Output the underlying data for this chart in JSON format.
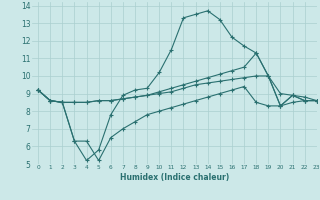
{
  "xlabel": "Humidex (Indice chaleur)",
  "background_color": "#cce8e8",
  "grid_color": "#aacfcf",
  "line_color": "#2a7070",
  "xlim": [
    -0.5,
    23
  ],
  "ylim": [
    5,
    14.2
  ],
  "xticks": [
    0,
    1,
    2,
    3,
    4,
    5,
    6,
    7,
    8,
    9,
    10,
    11,
    12,
    13,
    14,
    15,
    16,
    17,
    18,
    19,
    20,
    21,
    22,
    23
  ],
  "yticks": [
    5,
    6,
    7,
    8,
    9,
    10,
    11,
    12,
    13,
    14
  ],
  "s1": [
    9.2,
    8.6,
    8.5,
    6.3,
    5.2,
    5.8,
    7.8,
    8.9,
    9.2,
    9.3,
    10.2,
    11.5,
    13.3,
    13.5,
    13.7,
    13.2,
    12.2,
    11.7,
    11.3,
    10.0,
    8.3,
    8.9,
    8.6,
    8.6
  ],
  "s2": [
    9.2,
    8.6,
    8.5,
    8.5,
    8.5,
    8.6,
    8.6,
    8.7,
    8.8,
    8.9,
    9.1,
    9.3,
    9.5,
    9.7,
    9.9,
    10.1,
    10.3,
    10.5,
    11.3,
    10.0,
    8.3,
    8.9,
    8.6,
    8.6
  ],
  "s3": [
    9.2,
    8.6,
    8.5,
    8.5,
    8.5,
    8.6,
    8.6,
    8.7,
    8.8,
    8.9,
    9.0,
    9.1,
    9.3,
    9.5,
    9.6,
    9.7,
    9.8,
    9.9,
    10.0,
    10.0,
    9.0,
    8.9,
    8.8,
    8.6
  ],
  "s4": [
    9.2,
    8.6,
    8.5,
    6.3,
    6.3,
    5.2,
    6.5,
    7.0,
    7.4,
    7.8,
    8.0,
    8.2,
    8.4,
    8.6,
    8.8,
    9.0,
    9.2,
    9.4,
    8.5,
    8.3,
    8.3,
    8.5,
    8.6,
    8.6
  ]
}
